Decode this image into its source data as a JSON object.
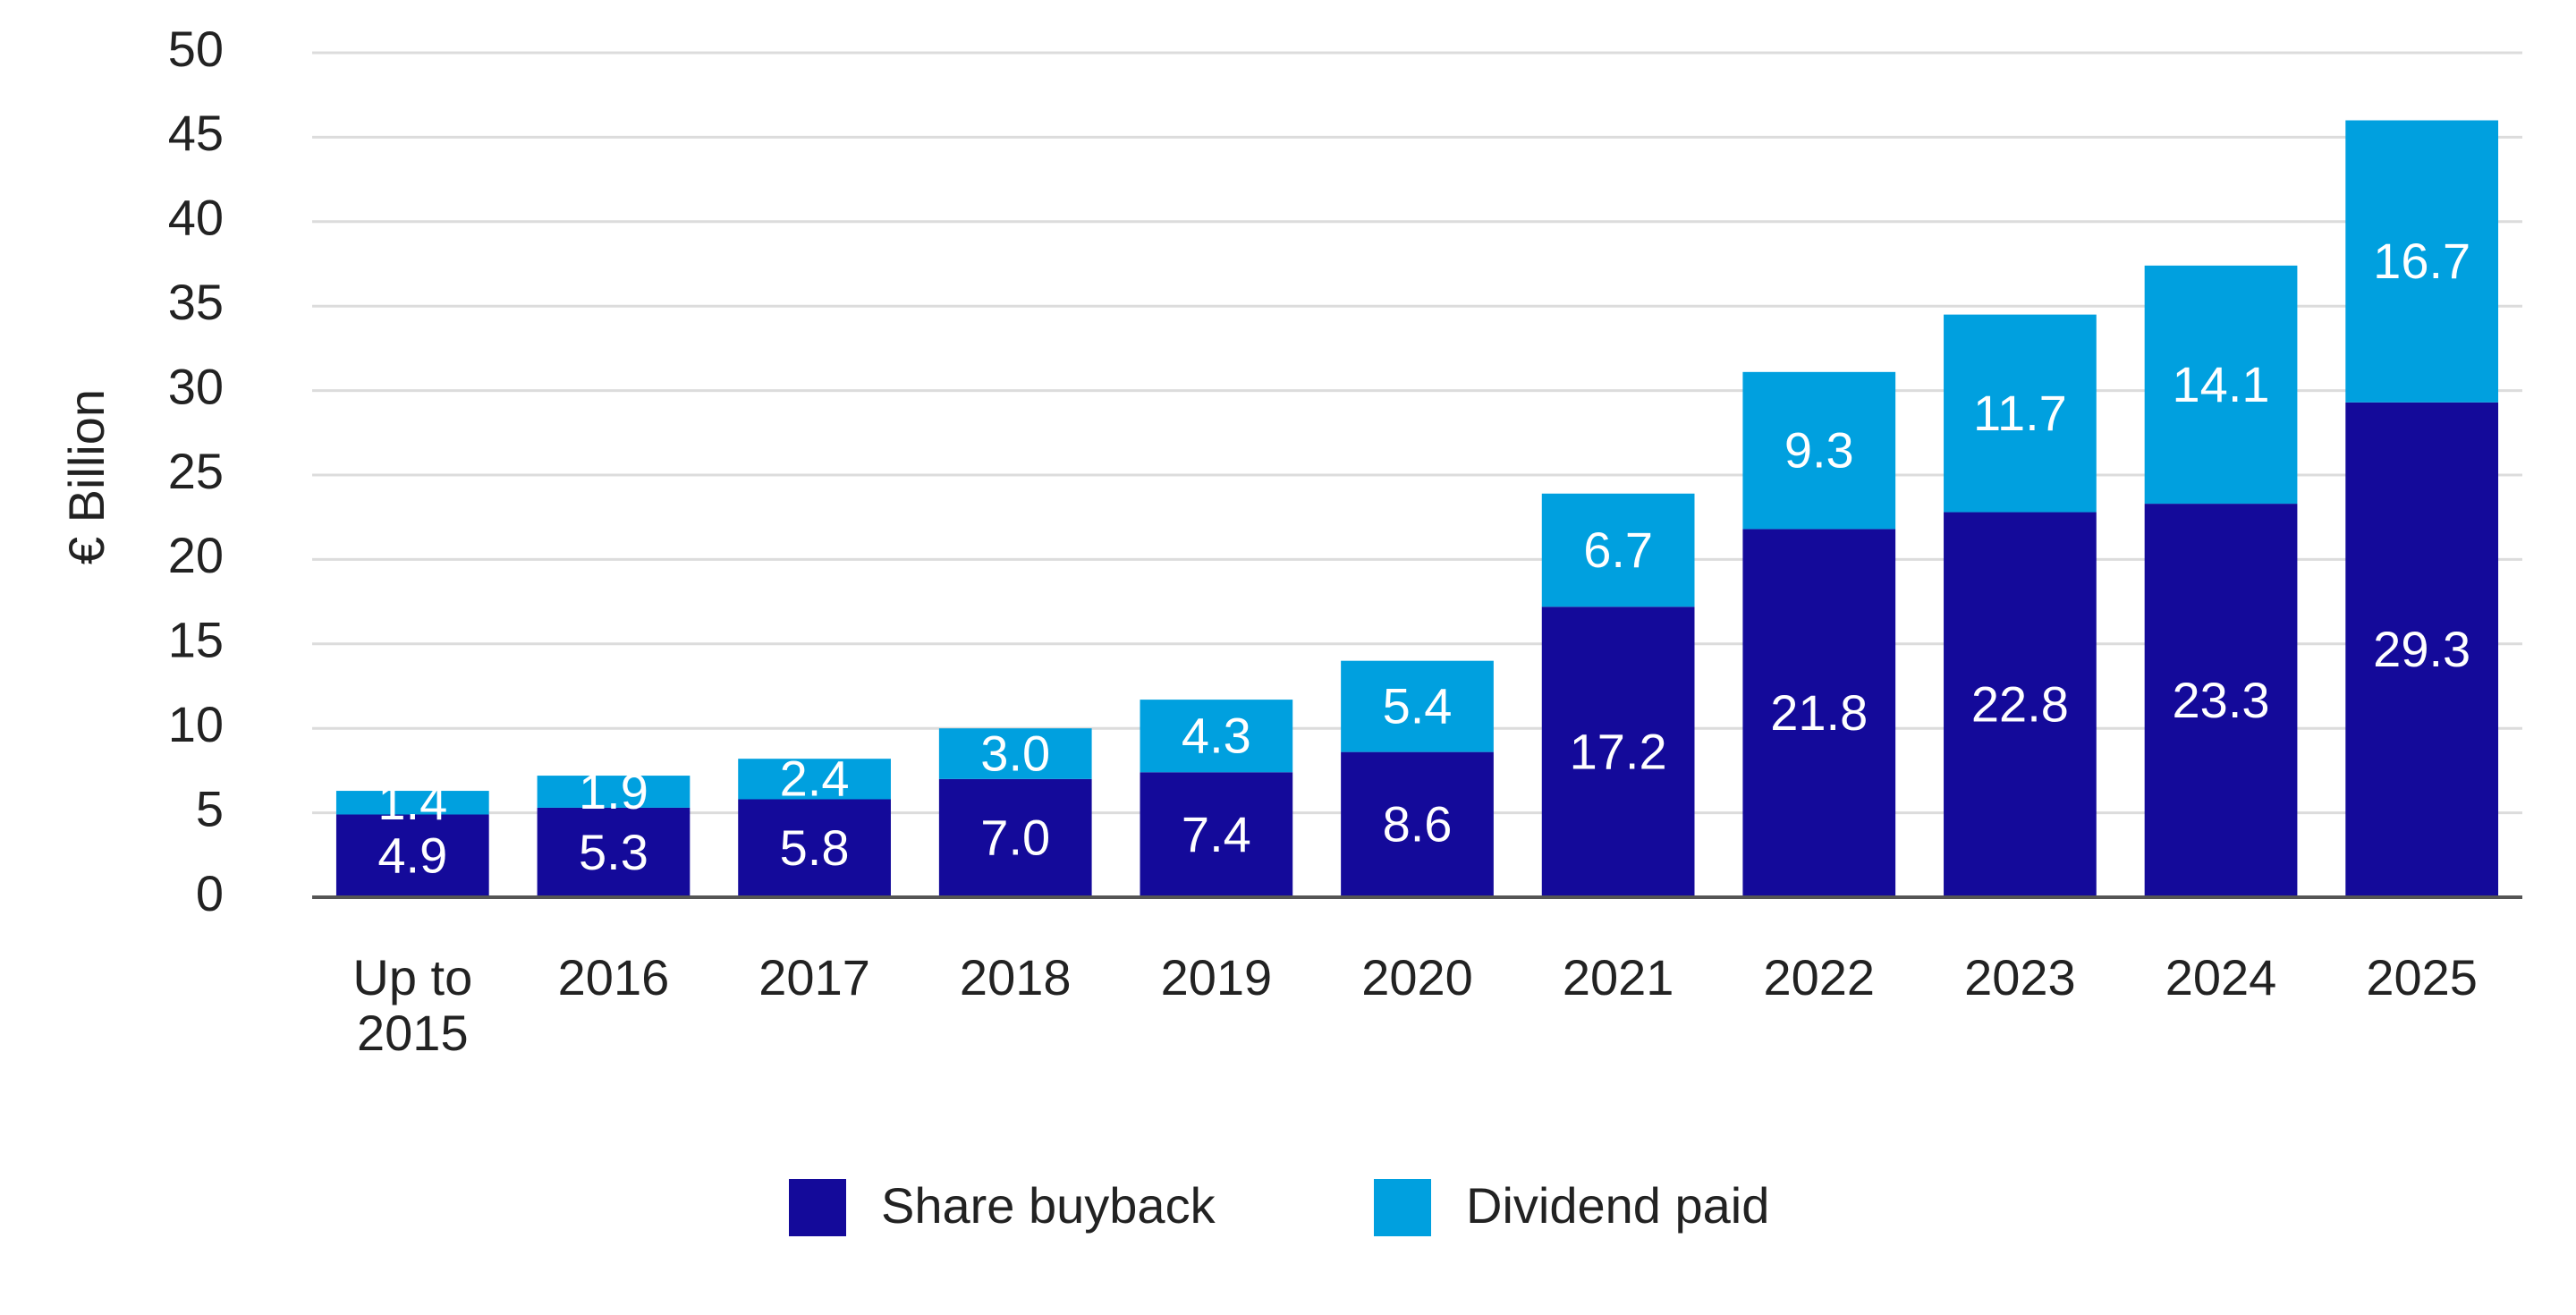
{
  "chart_data": {
    "type": "stacked_bar",
    "y_label": "€ Billion",
    "categories": [
      "Up to 2015",
      "2016",
      "2017",
      "2018",
      "2019",
      "2020",
      "2021",
      "2022",
      "2023",
      "2024",
      "2025"
    ],
    "series": [
      {
        "name": "Share buyback",
        "color": "#140a9a",
        "values": [
          4.9,
          5.3,
          5.8,
          7.0,
          7.4,
          8.6,
          17.2,
          21.8,
          22.8,
          23.3,
          29.3
        ],
        "value_labels": [
          "4.9",
          "5.3",
          "5.8",
          "7.0",
          "7.4",
          "8.6",
          "17.2",
          "21.8",
          "22.8",
          "23.3",
          "29.3"
        ]
      },
      {
        "name": "Dividend paid",
        "color": "#00a0df",
        "values": [
          1.4,
          1.9,
          2.4,
          3.0,
          4.3,
          5.4,
          6.7,
          9.3,
          11.7,
          14.1,
          16.7
        ],
        "value_labels": [
          "1.4",
          "1.9",
          "2.4",
          "3.0",
          "4.3",
          "5.4",
          "6.7",
          "9.3",
          "11.7",
          "14.1",
          "16.7"
        ]
      }
    ],
    "ylim": [
      0,
      50
    ],
    "yticks": [
      0,
      5,
      10,
      15,
      20,
      25,
      30,
      35,
      40,
      45,
      50
    ],
    "grid": true
  }
}
